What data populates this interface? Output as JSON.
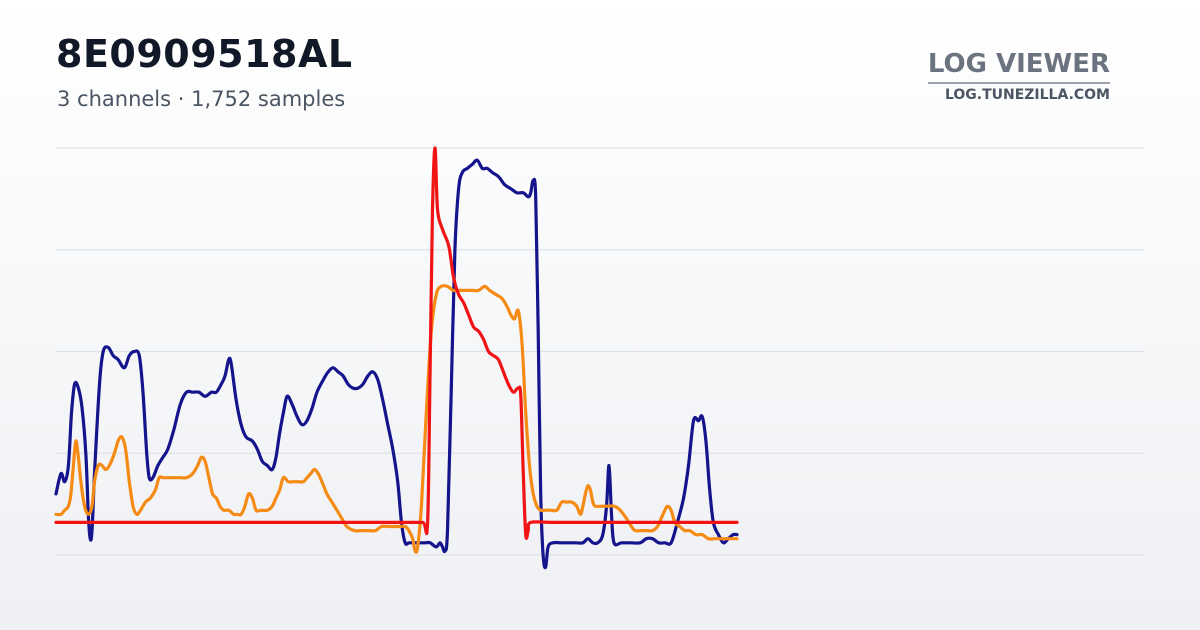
{
  "header": {
    "title": "8E0909518AL",
    "subtitle": "3 channels · 1,752 samples"
  },
  "brand": {
    "name": "LOG VIEWER",
    "url": "LOG.TUNEZILLA.COM"
  },
  "chart_data": {
    "type": "line",
    "title": "8E0909518AL",
    "subtitle": "3 channels · 1,752 samples",
    "xlabel": "",
    "ylabel": "",
    "xlim": [
      0,
      1751
    ],
    "ylim": [
      0,
      100
    ],
    "grid": true,
    "legend": "none",
    "series": [
      {
        "color": "#14148c",
        "points": [
          [
            0,
            15
          ],
          [
            8,
            20
          ],
          [
            14,
            18
          ],
          [
            20,
            22
          ],
          [
            25,
            35
          ],
          [
            30,
            42
          ],
          [
            36,
            41
          ],
          [
            42,
            36
          ],
          [
            48,
            25
          ],
          [
            52,
            10
          ],
          [
            55,
            4
          ],
          [
            58,
            6
          ],
          [
            62,
            20
          ],
          [
            70,
            42
          ],
          [
            76,
            50
          ],
          [
            84,
            51
          ],
          [
            92,
            49
          ],
          [
            100,
            48
          ],
          [
            110,
            46
          ],
          [
            118,
            49
          ],
          [
            126,
            50
          ],
          [
            134,
            49
          ],
          [
            140,
            40
          ],
          [
            146,
            25
          ],
          [
            150,
            19
          ],
          [
            156,
            19
          ],
          [
            164,
            22
          ],
          [
            172,
            24
          ],
          [
            180,
            26
          ],
          [
            190,
            31
          ],
          [
            200,
            37
          ],
          [
            210,
            40
          ],
          [
            220,
            40
          ],
          [
            230,
            40
          ],
          [
            240,
            39
          ],
          [
            250,
            40
          ],
          [
            258,
            40
          ],
          [
            266,
            42
          ],
          [
            272,
            44
          ],
          [
            278,
            48
          ],
          [
            282,
            47
          ],
          [
            290,
            38
          ],
          [
            298,
            32
          ],
          [
            306,
            29
          ],
          [
            316,
            28
          ],
          [
            324,
            26
          ],
          [
            332,
            23
          ],
          [
            340,
            22
          ],
          [
            348,
            21
          ],
          [
            354,
            24
          ],
          [
            360,
            30
          ],
          [
            366,
            35
          ],
          [
            372,
            39
          ],
          [
            380,
            37
          ],
          [
            388,
            34
          ],
          [
            396,
            32
          ],
          [
            404,
            33
          ],
          [
            412,
            36
          ],
          [
            420,
            40
          ],
          [
            430,
            43
          ],
          [
            438,
            45
          ],
          [
            446,
            46
          ],
          [
            454,
            45
          ],
          [
            462,
            44
          ],
          [
            470,
            42
          ],
          [
            478,
            41
          ],
          [
            486,
            41
          ],
          [
            494,
            42
          ],
          [
            502,
            44
          ],
          [
            510,
            45
          ],
          [
            518,
            43
          ],
          [
            526,
            38
          ],
          [
            534,
            32
          ],
          [
            542,
            26
          ],
          [
            550,
            18
          ],
          [
            556,
            8
          ],
          [
            562,
            3
          ],
          [
            568,
            3
          ],
          [
            576,
            3
          ],
          [
            584,
            3
          ],
          [
            594,
            3
          ],
          [
            602,
            3
          ],
          [
            612,
            2
          ],
          [
            618,
            3
          ],
          [
            622,
            2
          ],
          [
            626,
            1
          ],
          [
            630,
            6
          ],
          [
            636,
            40
          ],
          [
            642,
            75
          ],
          [
            648,
            90
          ],
          [
            654,
            94
          ],
          [
            662,
            95
          ],
          [
            670,
            96
          ],
          [
            678,
            97
          ],
          [
            686,
            95
          ],
          [
            694,
            95
          ],
          [
            702,
            94
          ],
          [
            712,
            93
          ],
          [
            722,
            91
          ],
          [
            732,
            90
          ],
          [
            742,
            89
          ],
          [
            752,
            89
          ],
          [
            760,
            88
          ],
          [
            764,
            89
          ],
          [
            768,
            92
          ],
          [
            772,
            88
          ],
          [
            776,
            55
          ],
          [
            780,
            15
          ],
          [
            784,
            0
          ],
          [
            788,
            -3
          ],
          [
            792,
            2
          ],
          [
            800,
            3
          ],
          [
            812,
            3
          ],
          [
            824,
            3
          ],
          [
            836,
            3
          ],
          [
            848,
            3
          ],
          [
            856,
            4
          ],
          [
            864,
            3
          ],
          [
            872,
            3
          ],
          [
            880,
            5
          ],
          [
            886,
            12
          ],
          [
            890,
            22
          ],
          [
            894,
            10
          ],
          [
            898,
            3
          ],
          [
            910,
            3
          ],
          [
            924,
            3
          ],
          [
            940,
            3
          ],
          [
            950,
            4
          ],
          [
            960,
            4
          ],
          [
            970,
            3
          ],
          [
            980,
            3
          ],
          [
            990,
            3
          ],
          [
            1000,
            8
          ],
          [
            1010,
            14
          ],
          [
            1018,
            22
          ],
          [
            1026,
            33
          ],
          [
            1034,
            33
          ],
          [
            1040,
            34
          ],
          [
            1046,
            28
          ],
          [
            1052,
            16
          ],
          [
            1058,
            8
          ],
          [
            1066,
            5
          ],
          [
            1074,
            3
          ],
          [
            1082,
            4
          ],
          [
            1090,
            5
          ],
          [
            1096,
            5
          ]
        ]
      },
      {
        "color": "#f58b14",
        "points": [
          [
            0,
            10
          ],
          [
            8,
            10
          ],
          [
            14,
            11
          ],
          [
            20,
            12
          ],
          [
            24,
            15
          ],
          [
            28,
            22
          ],
          [
            32,
            28
          ],
          [
            36,
            24
          ],
          [
            40,
            18
          ],
          [
            46,
            12
          ],
          [
            52,
            10
          ],
          [
            58,
            12
          ],
          [
            62,
            18
          ],
          [
            68,
            22
          ],
          [
            74,
            22
          ],
          [
            80,
            21
          ],
          [
            86,
            22
          ],
          [
            94,
            25
          ],
          [
            100,
            28
          ],
          [
            106,
            29
          ],
          [
            112,
            26
          ],
          [
            118,
            18
          ],
          [
            124,
            12
          ],
          [
            130,
            10
          ],
          [
            136,
            11
          ],
          [
            144,
            13
          ],
          [
            152,
            14
          ],
          [
            160,
            16
          ],
          [
            166,
            19
          ],
          [
            172,
            19
          ],
          [
            180,
            19
          ],
          [
            190,
            19
          ],
          [
            200,
            19
          ],
          [
            210,
            19
          ],
          [
            220,
            20
          ],
          [
            228,
            22
          ],
          [
            234,
            24
          ],
          [
            240,
            23
          ],
          [
            246,
            19
          ],
          [
            252,
            15
          ],
          [
            258,
            14
          ],
          [
            264,
            12
          ],
          [
            270,
            11
          ],
          [
            278,
            11
          ],
          [
            286,
            10
          ],
          [
            292,
            10
          ],
          [
            298,
            10
          ],
          [
            304,
            12
          ],
          [
            310,
            15
          ],
          [
            316,
            14
          ],
          [
            322,
            11
          ],
          [
            330,
            11
          ],
          [
            340,
            11
          ],
          [
            348,
            12
          ],
          [
            354,
            14
          ],
          [
            360,
            16
          ],
          [
            366,
            19
          ],
          [
            374,
            18
          ],
          [
            382,
            18
          ],
          [
            390,
            18
          ],
          [
            398,
            18
          ],
          [
            404,
            19
          ],
          [
            410,
            20
          ],
          [
            416,
            21
          ],
          [
            422,
            20
          ],
          [
            428,
            18
          ],
          [
            436,
            15
          ],
          [
            444,
            13
          ],
          [
            452,
            11
          ],
          [
            460,
            9
          ],
          [
            468,
            7
          ],
          [
            480,
            6
          ],
          [
            492,
            6
          ],
          [
            504,
            6
          ],
          [
            514,
            6
          ],
          [
            524,
            7
          ],
          [
            534,
            7
          ],
          [
            544,
            7
          ],
          [
            554,
            7
          ],
          [
            562,
            7
          ],
          [
            568,
            6
          ],
          [
            574,
            4
          ],
          [
            578,
            1
          ],
          [
            582,
            2
          ],
          [
            588,
            12
          ],
          [
            596,
            35
          ],
          [
            604,
            55
          ],
          [
            612,
            64
          ],
          [
            620,
            66
          ],
          [
            630,
            66
          ],
          [
            640,
            65
          ],
          [
            650,
            65
          ],
          [
            660,
            65
          ],
          [
            670,
            65
          ],
          [
            680,
            65
          ],
          [
            690,
            66
          ],
          [
            698,
            65
          ],
          [
            708,
            64
          ],
          [
            718,
            63
          ],
          [
            726,
            61
          ],
          [
            732,
            59
          ],
          [
            738,
            58
          ],
          [
            744,
            60
          ],
          [
            750,
            52
          ],
          [
            756,
            35
          ],
          [
            762,
            22
          ],
          [
            768,
            15
          ],
          [
            774,
            12
          ],
          [
            780,
            11
          ],
          [
            788,
            11
          ],
          [
            796,
            11
          ],
          [
            806,
            11
          ],
          [
            814,
            13
          ],
          [
            822,
            13
          ],
          [
            830,
            13
          ],
          [
            838,
            12
          ],
          [
            844,
            10
          ],
          [
            848,
            12
          ],
          [
            852,
            15
          ],
          [
            856,
            17
          ],
          [
            860,
            16
          ],
          [
            864,
            13
          ],
          [
            868,
            12
          ],
          [
            878,
            12
          ],
          [
            888,
            12
          ],
          [
            898,
            12
          ],
          [
            908,
            11
          ],
          [
            918,
            9
          ],
          [
            926,
            7
          ],
          [
            932,
            6
          ],
          [
            940,
            6
          ],
          [
            950,
            6
          ],
          [
            960,
            6
          ],
          [
            968,
            7
          ],
          [
            974,
            9
          ],
          [
            980,
            11
          ],
          [
            984,
            12
          ],
          [
            990,
            11
          ],
          [
            996,
            8
          ],
          [
            1004,
            7
          ],
          [
            1012,
            6
          ],
          [
            1020,
            6
          ],
          [
            1030,
            5
          ],
          [
            1040,
            5
          ],
          [
            1050,
            4
          ],
          [
            1060,
            4
          ],
          [
            1070,
            4
          ],
          [
            1080,
            4
          ],
          [
            1090,
            4
          ],
          [
            1096,
            4
          ]
        ]
      },
      {
        "color": "#f01414",
        "points": [
          [
            0,
            8
          ],
          [
            100,
            8
          ],
          [
            200,
            8
          ],
          [
            300,
            8
          ],
          [
            400,
            8
          ],
          [
            500,
            8
          ],
          [
            560,
            8
          ],
          [
            590,
            8
          ],
          [
            598,
            8
          ],
          [
            602,
            45
          ],
          [
            606,
            85
          ],
          [
            610,
            100
          ],
          [
            614,
            85
          ],
          [
            622,
            80
          ],
          [
            632,
            76
          ],
          [
            640,
            68
          ],
          [
            648,
            64
          ],
          [
            656,
            62
          ],
          [
            664,
            59
          ],
          [
            672,
            56
          ],
          [
            680,
            55
          ],
          [
            688,
            53
          ],
          [
            696,
            50
          ],
          [
            704,
            49
          ],
          [
            712,
            48
          ],
          [
            720,
            45
          ],
          [
            728,
            42
          ],
          [
            736,
            40
          ],
          [
            744,
            41
          ],
          [
            748,
            39
          ],
          [
            752,
            20
          ],
          [
            756,
            5
          ],
          [
            760,
            6
          ],
          [
            764,
            8
          ],
          [
            800,
            8
          ],
          [
            900,
            8
          ],
          [
            1000,
            8
          ],
          [
            1096,
            8
          ]
        ]
      }
    ]
  }
}
